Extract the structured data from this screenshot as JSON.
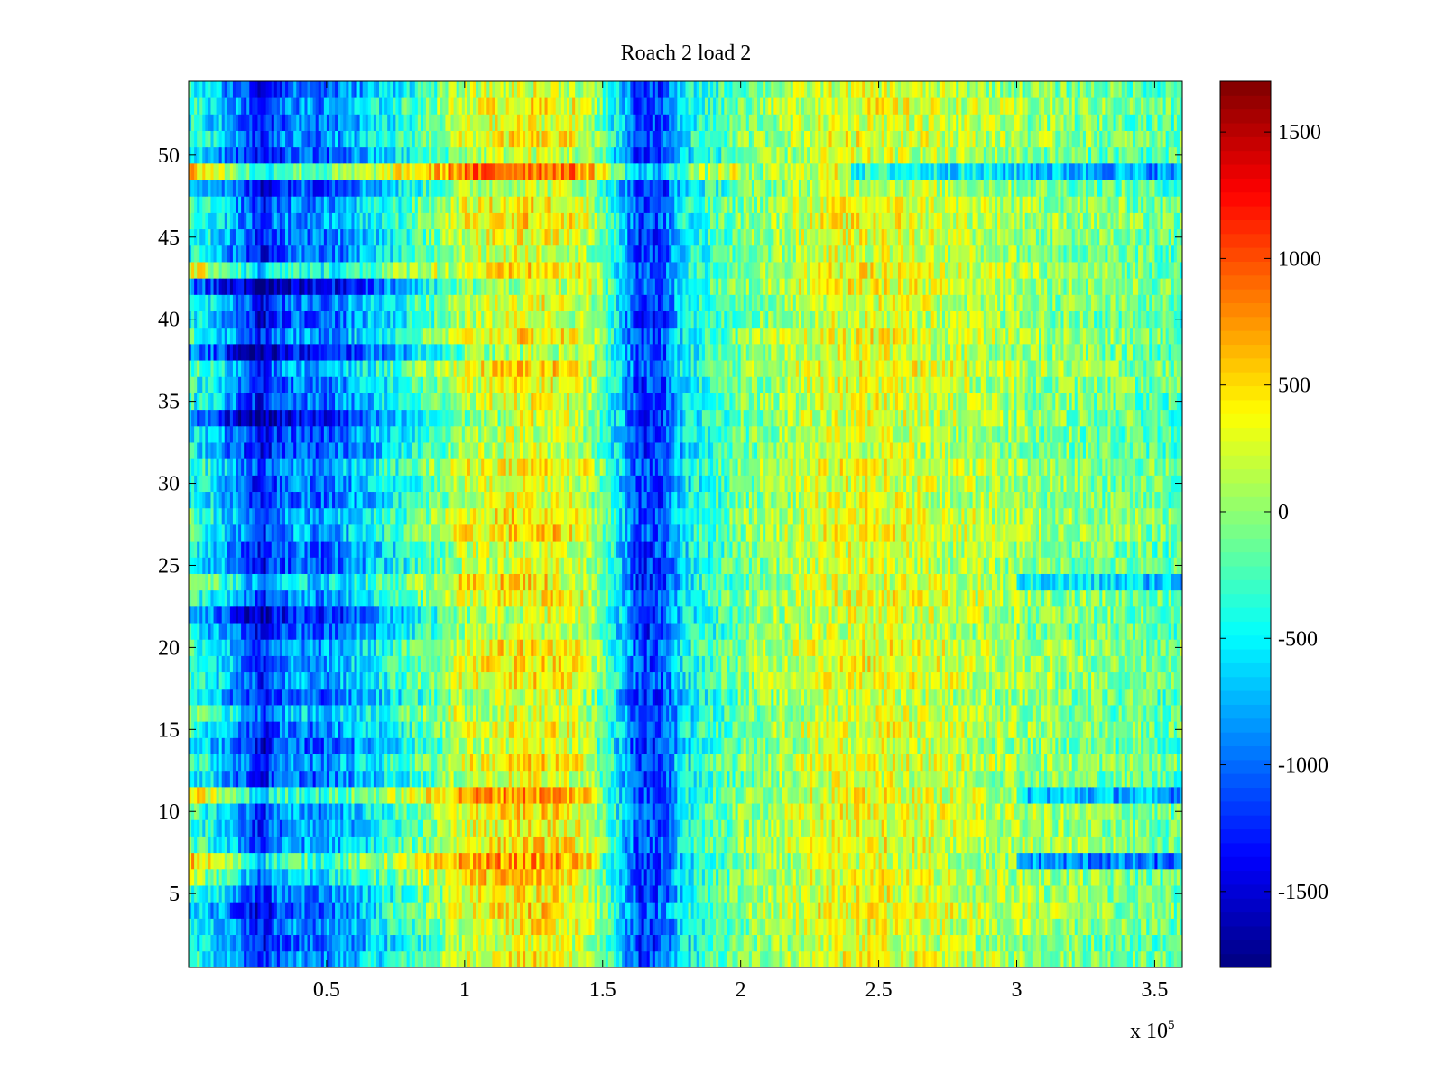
{
  "chart_data": {
    "type": "heatmap",
    "title": "Roach 2 load 2",
    "xlabel": "",
    "ylabel": "",
    "x_range": [
      0,
      360000
    ],
    "y_range": [
      0.5,
      54.5
    ],
    "x_ticks": [
      50000,
      100000,
      150000,
      200000,
      250000,
      300000,
      350000
    ],
    "x_tick_labels": [
      "0.5",
      "1",
      "1.5",
      "2",
      "2.5",
      "3",
      "3.5"
    ],
    "x_exponent_label": {
      "base": "x 10",
      "power": "5"
    },
    "y_ticks": [
      5,
      10,
      15,
      20,
      25,
      30,
      35,
      40,
      45,
      50
    ],
    "y_tick_labels": [
      "5",
      "10",
      "15",
      "20",
      "25",
      "30",
      "35",
      "40",
      "45",
      "50"
    ],
    "colormap": "jet",
    "color_range": [
      -1800,
      1700
    ],
    "colorbar_ticks": [
      -1500,
      -1000,
      -500,
      0,
      500,
      1000,
      1500
    ],
    "colorbar_tick_labels": [
      "-1500",
      "-1000",
      "-500",
      "0",
      "500",
      "1000",
      "1500"
    ],
    "row_count": 54,
    "column_profile": {
      "x": [
        0,
        10000,
        20000,
        27000,
        30000,
        40000,
        47000,
        55000,
        65000,
        90000,
        100000,
        120000,
        135000,
        145000,
        155000,
        163000,
        172000,
        180000,
        200000,
        230000,
        250000,
        280000,
        310000,
        340000,
        360000
      ],
      "value": [
        -300,
        -600,
        -1000,
        -1400,
        -1100,
        -900,
        -1000,
        -850,
        -650,
        -100,
        200,
        350,
        330,
        150,
        -500,
        -1200,
        -1100,
        -500,
        -100,
        250,
        300,
        150,
        0,
        -100,
        -200
      ]
    },
    "row_offsets": {
      "49": {
        "value": 900,
        "x_fade_end": 200000,
        "tail_value": -700,
        "tail_start": 240000
      },
      "43": {
        "value": 600,
        "x_fade_end": 90000
      },
      "42": {
        "value": -800,
        "x_fade_end": 140000
      },
      "38": {
        "value": -500,
        "x_fade_end": 140000
      },
      "34": {
        "value": -500,
        "x_fade_end": 120000
      },
      "24": {
        "value": 500,
        "x_fade_end": 130000,
        "tail_value": -500,
        "tail_start": 300000
      },
      "22": {
        "value": -400,
        "x_fade_end": 130000
      },
      "16": {
        "value": 500,
        "x_fade_end": 100000
      },
      "11": {
        "value": 700,
        "x_fade_end": 150000,
        "tail_value": -700,
        "tail_start": 300000
      },
      "7": {
        "value": 1000,
        "x_fade_end": 150000,
        "tail_value": -800,
        "tail_start": 300000
      },
      "6": {
        "value": 400,
        "x_fade_end": 140000
      },
      "4": {
        "value": -400,
        "x_fade_end": 70000
      }
    },
    "noise_amplitude": 350
  }
}
